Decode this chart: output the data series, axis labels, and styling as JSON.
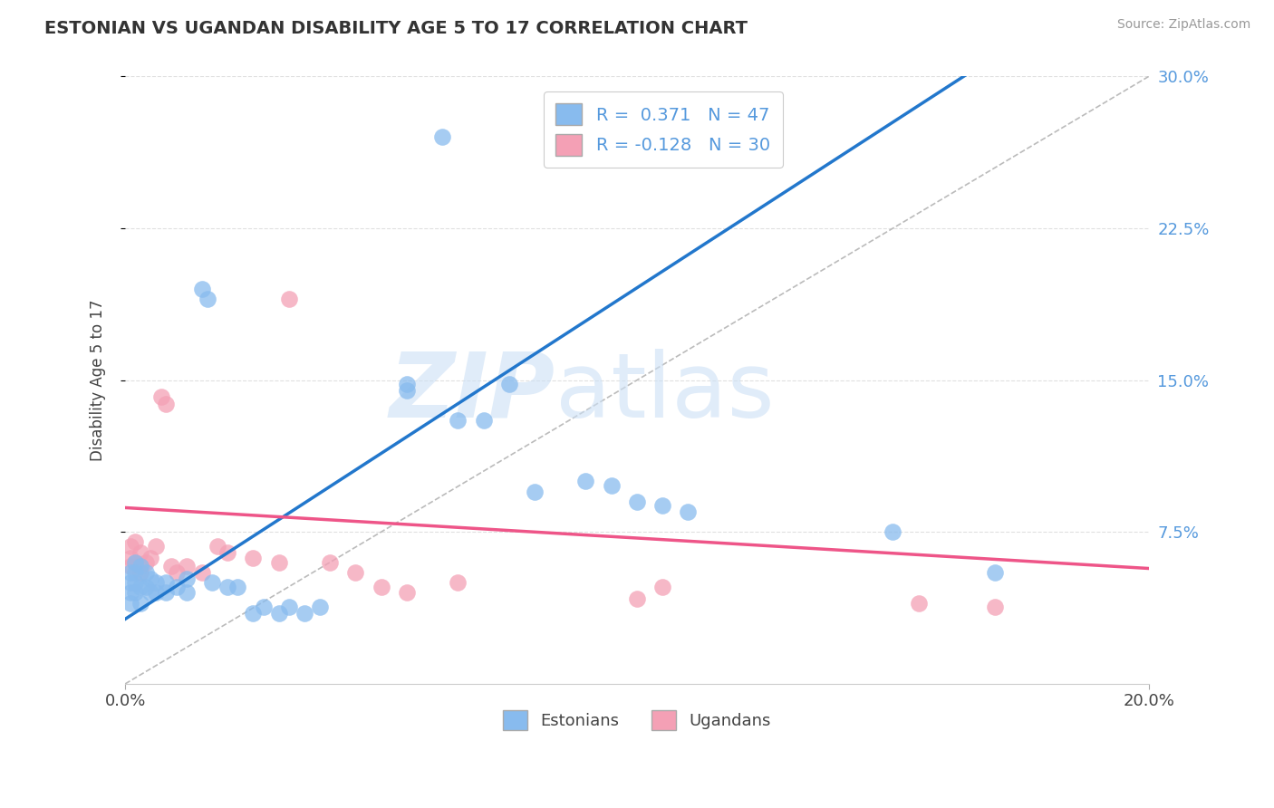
{
  "title": "ESTONIAN VS UGANDAN DISABILITY AGE 5 TO 17 CORRELATION CHART",
  "source_text": "Source: ZipAtlas.com",
  "ylabel": "Disability Age 5 to 17",
  "xlim": [
    0.0,
    0.2
  ],
  "ylim": [
    0.0,
    0.3
  ],
  "background_color": "#ffffff",
  "grid_color": "#e0e0e0",
  "watermark_zip": "ZIP",
  "watermark_atlas": "atlas",
  "estonian_color": "#88BBEE",
  "ugandan_color": "#F4A0B5",
  "estonian_line_color": "#2277CC",
  "ugandan_line_color": "#EE5588",
  "diagonal_color": "#bbbbbb",
  "R_estonian": 0.371,
  "N_estonian": 47,
  "R_ugandan": -0.128,
  "N_ugandan": 30,
  "estonian_points": [
    [
      0.001,
      0.055
    ],
    [
      0.001,
      0.05
    ],
    [
      0.001,
      0.045
    ],
    [
      0.001,
      0.04
    ],
    [
      0.002,
      0.06
    ],
    [
      0.002,
      0.055
    ],
    [
      0.002,
      0.05
    ],
    [
      0.002,
      0.045
    ],
    [
      0.003,
      0.058
    ],
    [
      0.003,
      0.048
    ],
    [
      0.003,
      0.04
    ],
    [
      0.004,
      0.055
    ],
    [
      0.004,
      0.048
    ],
    [
      0.005,
      0.052
    ],
    [
      0.005,
      0.045
    ],
    [
      0.006,
      0.05
    ],
    [
      0.006,
      0.045
    ],
    [
      0.008,
      0.05
    ],
    [
      0.008,
      0.045
    ],
    [
      0.01,
      0.048
    ],
    [
      0.012,
      0.052
    ],
    [
      0.012,
      0.045
    ],
    [
      0.015,
      0.195
    ],
    [
      0.016,
      0.19
    ],
    [
      0.017,
      0.05
    ],
    [
      0.02,
      0.048
    ],
    [
      0.022,
      0.048
    ],
    [
      0.025,
      0.035
    ],
    [
      0.027,
      0.038
    ],
    [
      0.03,
      0.035
    ],
    [
      0.032,
      0.038
    ],
    [
      0.035,
      0.035
    ],
    [
      0.038,
      0.038
    ],
    [
      0.055,
      0.148
    ],
    [
      0.055,
      0.145
    ],
    [
      0.062,
      0.27
    ],
    [
      0.065,
      0.13
    ],
    [
      0.07,
      0.13
    ],
    [
      0.075,
      0.148
    ],
    [
      0.08,
      0.095
    ],
    [
      0.09,
      0.1
    ],
    [
      0.095,
      0.098
    ],
    [
      0.1,
      0.09
    ],
    [
      0.105,
      0.088
    ],
    [
      0.11,
      0.085
    ],
    [
      0.15,
      0.075
    ],
    [
      0.17,
      0.055
    ]
  ],
  "ugandan_points": [
    [
      0.001,
      0.068
    ],
    [
      0.001,
      0.062
    ],
    [
      0.001,
      0.058
    ],
    [
      0.002,
      0.07
    ],
    [
      0.002,
      0.06
    ],
    [
      0.003,
      0.065
    ],
    [
      0.003,
      0.055
    ],
    [
      0.004,
      0.06
    ],
    [
      0.005,
      0.062
    ],
    [
      0.006,
      0.068
    ],
    [
      0.007,
      0.142
    ],
    [
      0.008,
      0.138
    ],
    [
      0.009,
      0.058
    ],
    [
      0.01,
      0.055
    ],
    [
      0.012,
      0.058
    ],
    [
      0.015,
      0.055
    ],
    [
      0.018,
      0.068
    ],
    [
      0.02,
      0.065
    ],
    [
      0.025,
      0.062
    ],
    [
      0.03,
      0.06
    ],
    [
      0.032,
      0.19
    ],
    [
      0.04,
      0.06
    ],
    [
      0.045,
      0.055
    ],
    [
      0.05,
      0.048
    ],
    [
      0.055,
      0.045
    ],
    [
      0.065,
      0.05
    ],
    [
      0.1,
      0.042
    ],
    [
      0.105,
      0.048
    ],
    [
      0.155,
      0.04
    ],
    [
      0.17,
      0.038
    ]
  ]
}
